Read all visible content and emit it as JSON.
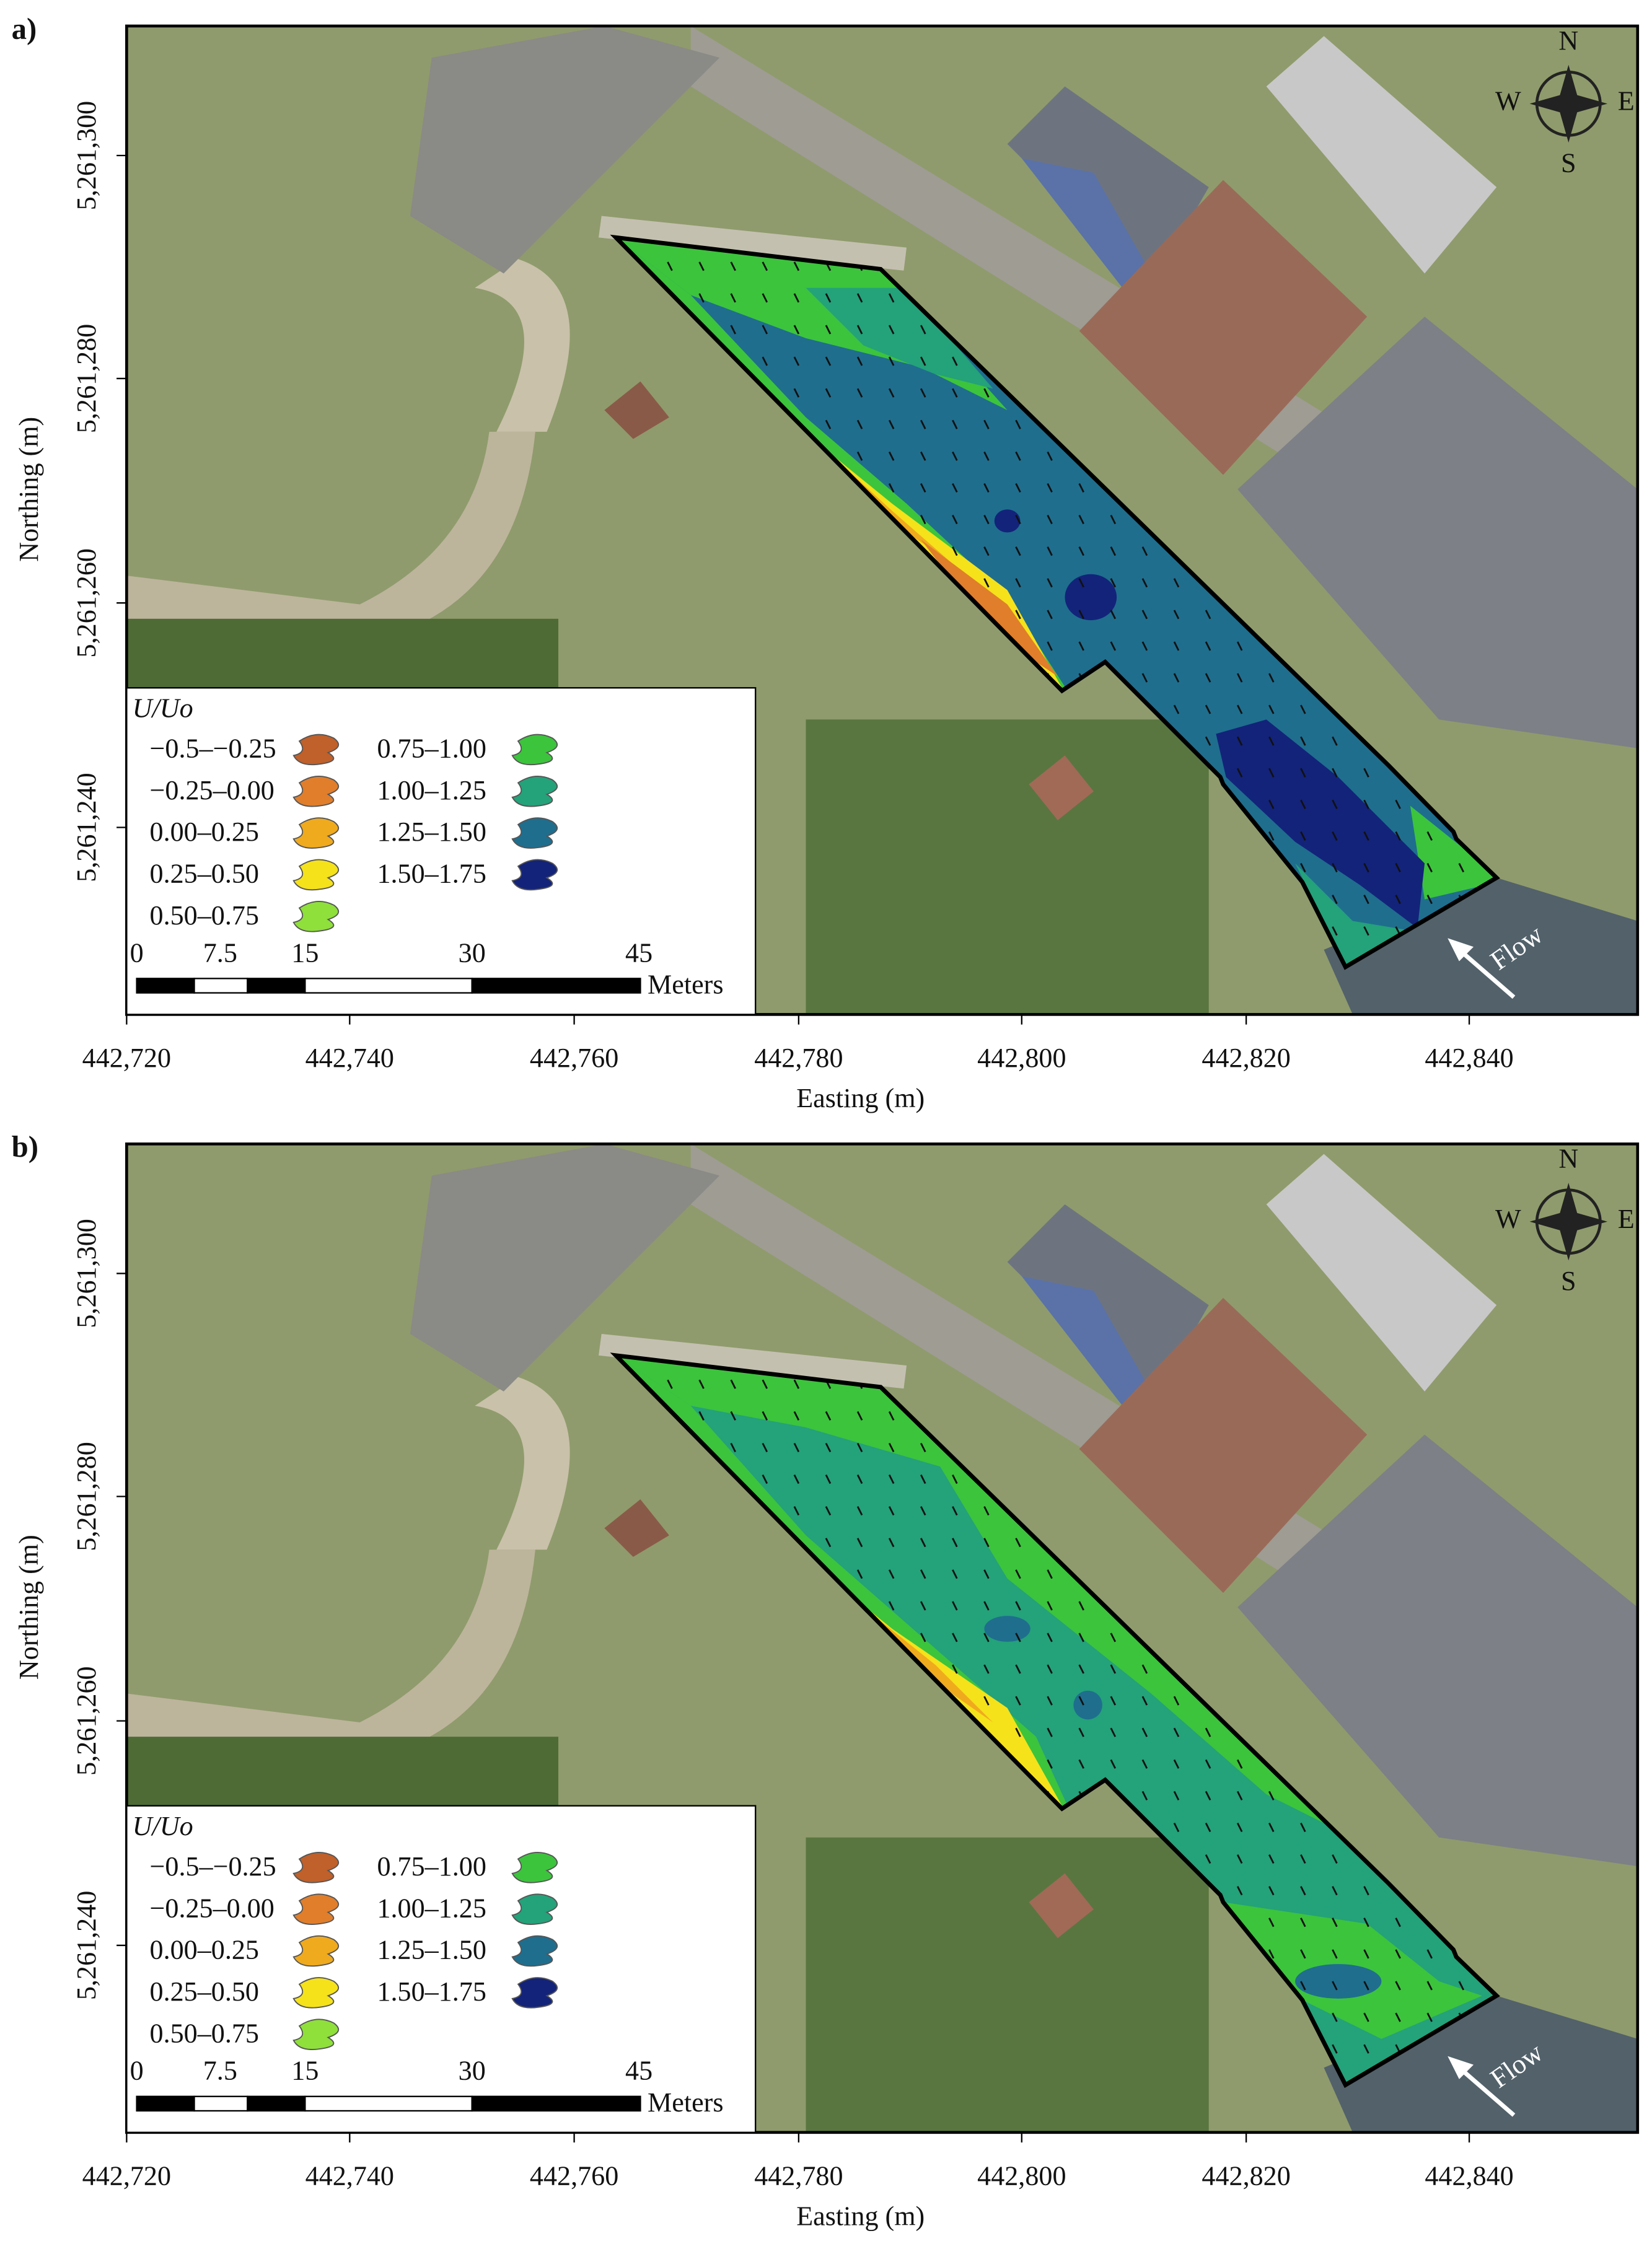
{
  "panels": [
    {
      "label": "a)"
    },
    {
      "label": "b)"
    }
  ],
  "x_axis": {
    "title": "Easting (m)",
    "ticks": [
      "442,720",
      "442,740",
      "442,760",
      "442,780",
      "442,800",
      "442,820",
      "442,840"
    ]
  },
  "y_axis": {
    "title": "Northing (m)",
    "ticks": [
      "5,261,300",
      "5,261,280",
      "5,261,260",
      "5,261,240"
    ]
  },
  "legend": {
    "title": "U/Uo",
    "items": [
      {
        "label": "−0.5–−0.25",
        "color": "#c0602a"
      },
      {
        "label": "−0.25–0.00",
        "color": "#e07e2c"
      },
      {
        "label": "0.00–0.25",
        "color": "#f0aa1e"
      },
      {
        "label": "0.25–0.50",
        "color": "#f5e21a"
      },
      {
        "label": "0.50–0.75",
        "color": "#8fe03a"
      },
      {
        "label": "0.75–1.00",
        "color": "#3cc43c"
      },
      {
        "label": "1.00–1.25",
        "color": "#24a27a"
      },
      {
        "label": "1.25–1.50",
        "color": "#1f6e8e"
      },
      {
        "label": "1.50–1.75",
        "color": "#13237a"
      }
    ]
  },
  "scale_bar": {
    "labels": [
      "0",
      "7.5",
      "15",
      "30",
      "45"
    ],
    "unit": "Meters"
  },
  "compass": {
    "n": "N",
    "s": "S",
    "e": "E",
    "w": "W"
  },
  "flow_label": "Flow"
}
